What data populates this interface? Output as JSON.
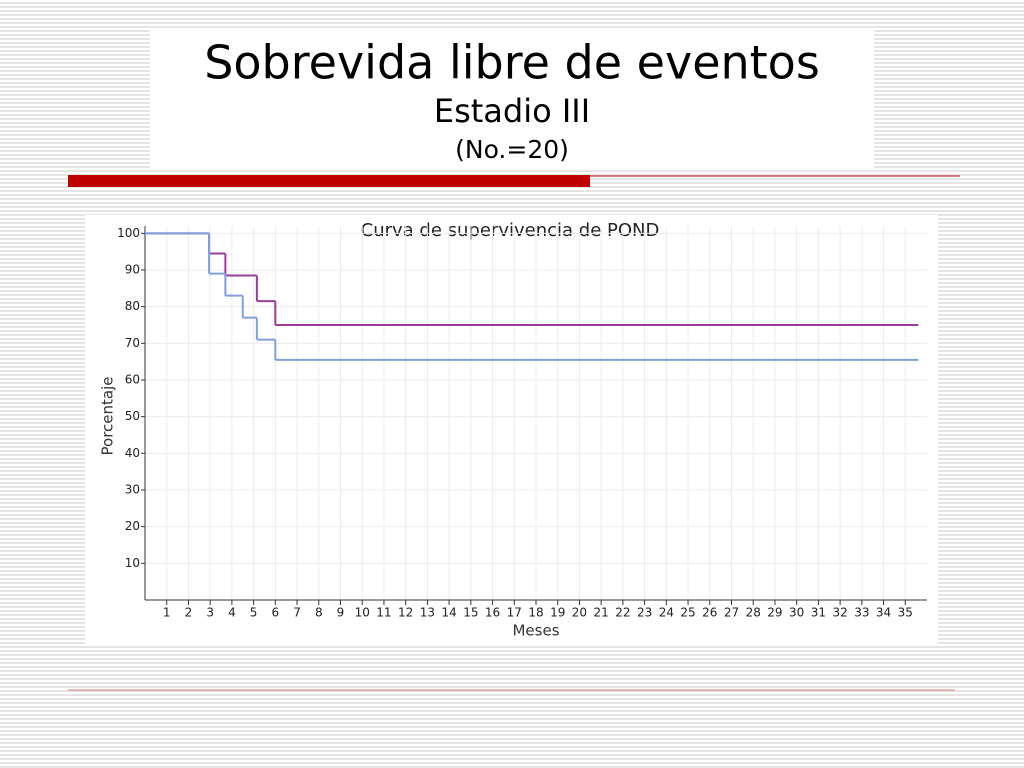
{
  "slide": {
    "title": "Sobrevida libre de eventos",
    "subtitle": "Estadio III",
    "note": "(No.=20)"
  },
  "chart_data": {
    "type": "line",
    "step": "post",
    "title": "Curva de supervivencia de POND",
    "x_label": "Meses",
    "y_label": "Porcentaje",
    "xlim": [
      0,
      36
    ],
    "ylim": [
      0,
      102
    ],
    "xticks": [
      1,
      2,
      3,
      4,
      5,
      6,
      7,
      8,
      9,
      10,
      11,
      12,
      13,
      14,
      15,
      16,
      17,
      18,
      19,
      20,
      21,
      22,
      23,
      24,
      25,
      26,
      27,
      28,
      29,
      30,
      31,
      32,
      33,
      34,
      35
    ],
    "yticks": [
      10,
      20,
      30,
      40,
      50,
      60,
      70,
      80,
      90,
      100
    ],
    "grid": true,
    "series": [
      {
        "color": "#9b3c9b",
        "x": [
          0,
          2.95,
          3.7,
          5.15,
          6.0,
          35.6
        ],
        "values": [
          100,
          94.5,
          88.5,
          81.5,
          75,
          75
        ]
      },
      {
        "color": "#7f9fdf",
        "x": [
          0,
          2.95,
          3.7,
          4.5,
          5.15,
          6.0,
          35.6
        ],
        "values": [
          100,
          89,
          83,
          77,
          71,
          65.5,
          65.5
        ]
      }
    ]
  }
}
